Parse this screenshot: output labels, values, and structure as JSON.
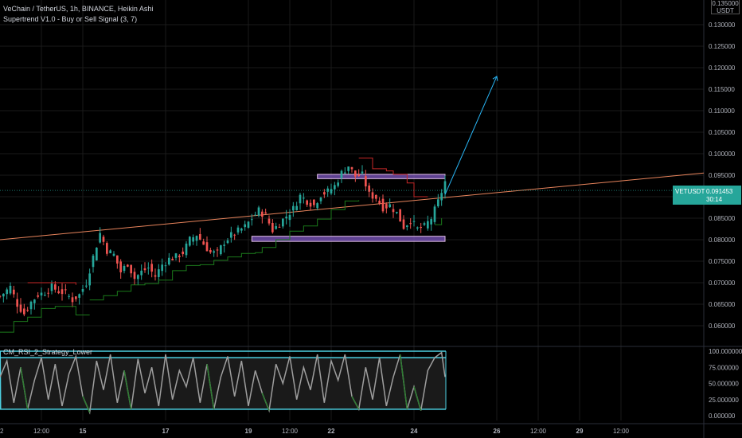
{
  "legend": {
    "title": "VeChain / TetherUS, 1h, BINANCE, Heikin Ashi",
    "indicator": "Supertrend V1.0 - Buy or Sell Signal (3, 7)",
    "rsi_indicator": "CM_RSI_2_Strategy_Lower"
  },
  "price_tag": {
    "symbol": "VETUSDT",
    "value": "0.091453",
    "countdown": "30:14"
  },
  "currency_label": "USDT",
  "top_price_cut": "0.135000",
  "colors": {
    "background": "#000000",
    "bull": "#26a69a",
    "bear": "#ef5350",
    "supertrend_up": "#1b7a1b",
    "supertrend_down": "#c62828",
    "trendline": "#e8845c",
    "projection": "#29b6f6",
    "zone_fill": "#7e57c2",
    "zone_border": "#e1bee7",
    "rsi_line": "#9e9e9e",
    "rsi_band": "#4dd0e1",
    "grid": "#1a1a1a"
  },
  "chart_data": [
    {
      "type": "candlestick",
      "title": "VeChain / TetherUS, 1h, BINANCE, Heikin Ashi",
      "y_axis": {
        "min": 0.055,
        "max": 0.135,
        "ticks": [
          "0.060000",
          "0.065000",
          "0.070000",
          "0.075000",
          "0.080000",
          "0.085000",
          "0.090000",
          "0.095000",
          "0.100000",
          "0.105000",
          "0.110000",
          "0.115000",
          "0.120000",
          "0.125000",
          "0.130000"
        ]
      },
      "x_axis": {
        "range_hours": [
          0,
          204
        ],
        "ticks": [
          {
            "label": "12:00",
            "hour": 12
          },
          {
            "label": "15",
            "hour": 24
          },
          {
            "label": "17",
            "hour": 48
          },
          {
            "label": "19",
            "hour": 72
          },
          {
            "label": "12:00",
            "hour": 84
          },
          {
            "label": "22",
            "hour": 96
          },
          {
            "label": "24",
            "hour": 120
          },
          {
            "label": "26",
            "hour": 144
          },
          {
            "label": "12:00",
            "hour": 156
          },
          {
            "label": "29",
            "hour": 168
          },
          {
            "label": "12:00",
            "hour": 180
          }
        ]
      },
      "close_path": [
        [
          0,
          0.0668
        ],
        [
          3,
          0.069
        ],
        [
          5,
          0.065
        ],
        [
          7,
          0.0628
        ],
        [
          9,
          0.0655
        ],
        [
          11,
          0.0672
        ],
        [
          13,
          0.0678
        ],
        [
          15,
          0.069
        ],
        [
          17,
          0.068
        ],
        [
          19,
          0.0676
        ],
        [
          21,
          0.066
        ],
        [
          23,
          0.0672
        ],
        [
          25,
          0.07
        ],
        [
          27,
          0.076
        ],
        [
          29,
          0.0815
        ],
        [
          31,
          0.0775
        ],
        [
          33,
          0.0765
        ],
        [
          35,
          0.0725
        ],
        [
          37,
          0.0745
        ],
        [
          39,
          0.071
        ],
        [
          41,
          0.0725
        ],
        [
          43,
          0.0735
        ],
        [
          45,
          0.0715
        ],
        [
          47,
          0.0742
        ],
        [
          49,
          0.0755
        ],
        [
          51,
          0.076
        ],
        [
          53,
          0.077
        ],
        [
          55,
          0.08
        ],
        [
          57,
          0.0812
        ],
        [
          59,
          0.079
        ],
        [
          61,
          0.077
        ],
        [
          63,
          0.0768
        ],
        [
          65,
          0.0795
        ],
        [
          67,
          0.081
        ],
        [
          69,
          0.082
        ],
        [
          71,
          0.083
        ],
        [
          73,
          0.085
        ],
        [
          75,
          0.0868
        ],
        [
          77,
          0.0855
        ],
        [
          79,
          0.0822
        ],
        [
          81,
          0.0838
        ],
        [
          83,
          0.0855
        ],
        [
          85,
          0.0872
        ],
        [
          87,
          0.0902
        ],
        [
          89,
          0.089
        ],
        [
          91,
          0.088
        ],
        [
          93,
          0.0905
        ],
        [
          95,
          0.0912
        ],
        [
          97,
          0.0925
        ],
        [
          99,
          0.0955
        ],
        [
          101,
          0.0972
        ],
        [
          103,
          0.0948
        ],
        [
          105,
          0.095
        ],
        [
          107,
          0.0905
        ],
        [
          109,
          0.0898
        ],
        [
          111,
          0.0875
        ],
        [
          113,
          0.088
        ],
        [
          115,
          0.0862
        ],
        [
          117,
          0.083
        ],
        [
          119,
          0.0845
        ],
        [
          121,
          0.0825
        ],
        [
          123,
          0.083
        ],
        [
          125,
          0.085
        ],
        [
          127,
          0.0888
        ],
        [
          129,
          0.0935
        ]
      ],
      "supertrend": [
        {
          "trend": "up",
          "points": [
            [
              0,
              0.0585
            ],
            [
              4,
              0.061
            ],
            [
              8,
              0.062
            ],
            [
              10,
              0.062
            ],
            [
              12,
              0.064
            ],
            [
              16,
              0.0645
            ],
            [
              20,
              0.0645
            ],
            [
              22,
              0.0625
            ],
            [
              26,
              0.0625
            ]
          ]
        },
        {
          "trend": "down",
          "points": [
            [
              8,
              0.07
            ],
            [
              20,
              0.07
            ],
            [
              22,
              0.0695
            ]
          ]
        },
        {
          "trend": "up",
          "points": [
            [
              26,
              0.066
            ],
            [
              27,
              0.066
            ],
            [
              30,
              0.067
            ],
            [
              34,
              0.068
            ],
            [
              38,
              0.0695
            ],
            [
              42,
              0.0698
            ],
            [
              46,
              0.0706
            ],
            [
              50,
              0.0728
            ],
            [
              54,
              0.074
            ],
            [
              58,
              0.0742
            ],
            [
              62,
              0.0752
            ],
            [
              66,
              0.076
            ],
            [
              70,
              0.0768
            ],
            [
              74,
              0.077
            ],
            [
              76,
              0.0782
            ],
            [
              80,
              0.08
            ],
            [
              84,
              0.082
            ],
            [
              88,
              0.0832
            ],
            [
              92,
              0.0848
            ],
            [
              96,
              0.087
            ],
            [
              100,
              0.089
            ],
            [
              104,
              0.0892
            ]
          ]
        },
        {
          "trend": "down",
          "points": [
            [
              104,
              0.099
            ],
            [
              106,
              0.099
            ],
            [
              108,
              0.0965
            ],
            [
              112,
              0.096
            ],
            [
              114,
              0.0952
            ],
            [
              118,
              0.0932
            ],
            [
              120,
              0.09
            ],
            [
              122,
              0.09
            ],
            [
              124,
              0.09
            ]
          ]
        },
        {
          "trend": "up",
          "points": [
            [
              126,
              0.0835
            ],
            [
              128,
              0.085
            ]
          ]
        }
      ],
      "trendline": {
        "from": [
          0,
          0.08
        ],
        "to": [
          204,
          0.0955
        ]
      },
      "projection": {
        "from": [
          129,
          0.0905
        ],
        "to": [
          144,
          0.118
        ]
      },
      "zones": [
        {
          "x0": 92,
          "x1": 129,
          "y0": 0.0942,
          "y1": 0.0952
        },
        {
          "x0": 73,
          "x1": 129,
          "y0": 0.0796,
          "y1": 0.0808
        }
      ],
      "current_price": 0.091453
    },
    {
      "type": "line",
      "title": "CM_RSI_2_Strategy_Lower",
      "y_axis": {
        "min": 0,
        "max": 100,
        "ticks": [
          "0.000000",
          "25.000000",
          "50.000000",
          "75.000000",
          "100.000000"
        ]
      },
      "bands": [
        10,
        90
      ],
      "series": [
        {
          "name": "",
          "values": [
            [
              0,
              60
            ],
            [
              2,
              85
            ],
            [
              4,
              20
            ],
            [
              6,
              75
            ],
            [
              8,
              10
            ],
            [
              10,
              55
            ],
            [
              12,
              90
            ],
            [
              14,
              25
            ],
            [
              16,
              80
            ],
            [
              18,
              15
            ],
            [
              20,
              65
            ],
            [
              22,
              92
            ],
            [
              24,
              30
            ],
            [
              26,
              5
            ],
            [
              28,
              85
            ],
            [
              30,
              40
            ],
            [
              32,
              95
            ],
            [
              34,
              20
            ],
            [
              36,
              70
            ],
            [
              38,
              10
            ],
            [
              40,
              88
            ],
            [
              42,
              35
            ],
            [
              44,
              75
            ],
            [
              46,
              15
            ],
            [
              48,
              95
            ],
            [
              50,
              25
            ],
            [
              52,
              70
            ],
            [
              54,
              45
            ],
            [
              56,
              90
            ],
            [
              58,
              20
            ],
            [
              60,
              80
            ],
            [
              62,
              10
            ],
            [
              64,
              60
            ],
            [
              66,
              92
            ],
            [
              68,
              30
            ],
            [
              70,
              85
            ],
            [
              72,
              15
            ],
            [
              74,
              70
            ],
            [
              76,
              35
            ],
            [
              78,
              8
            ],
            [
              80,
              80
            ],
            [
              82,
              50
            ],
            [
              84,
              92
            ],
            [
              86,
              25
            ],
            [
              88,
              75
            ],
            [
              90,
              40
            ],
            [
              92,
              95
            ],
            [
              94,
              20
            ],
            [
              96,
              85
            ],
            [
              98,
              55
            ],
            [
              100,
              95
            ],
            [
              102,
              30
            ],
            [
              104,
              10
            ],
            [
              106,
              75
            ],
            [
              108,
              25
            ],
            [
              110,
              90
            ],
            [
              112,
              15
            ],
            [
              114,
              60
            ],
            [
              116,
              95
            ],
            [
              118,
              10
            ],
            [
              120,
              45
            ],
            [
              122,
              8
            ],
            [
              124,
              70
            ],
            [
              126,
              90
            ],
            [
              128,
              98
            ],
            [
              129,
              60
            ]
          ]
        }
      ]
    }
  ]
}
